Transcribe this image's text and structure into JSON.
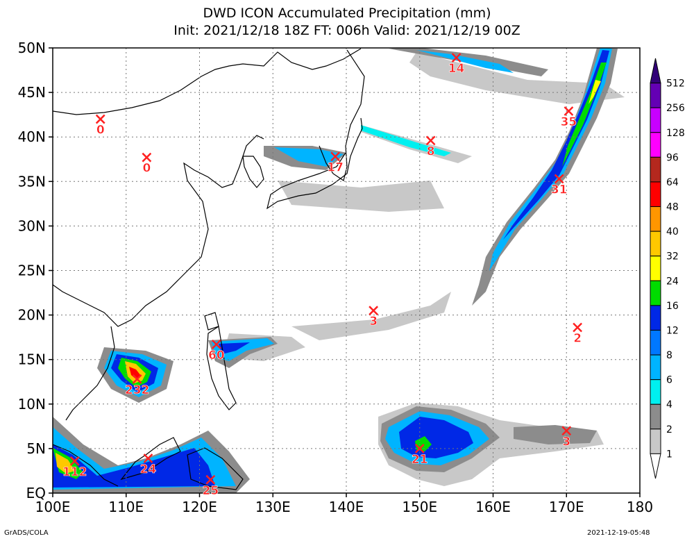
{
  "title": {
    "line1": "DWD ICON Accumulated Precipitation (mm)",
    "line2": "Init: 2021/12/18 18Z  FT: 006h  Valid: 2021/12/19 00Z"
  },
  "map": {
    "lon_range": [
      100,
      180
    ],
    "lat_range": [
      0,
      50
    ],
    "x_ticks": [
      "100E",
      "110E",
      "120E",
      "130E",
      "140E",
      "150E",
      "160E",
      "170E",
      "180"
    ],
    "y_ticks": [
      "EQ",
      "5N",
      "10N",
      "15N",
      "20N",
      "25N",
      "30N",
      "35N",
      "40N",
      "45N",
      "50N"
    ],
    "grid": true
  },
  "colorbar": {
    "levels": [
      "1",
      "2",
      "4",
      "6",
      "8",
      "12",
      "16",
      "24",
      "32",
      "40",
      "48",
      "64",
      "96",
      "128",
      "256",
      "512"
    ],
    "colors": [
      "#ffffff",
      "#c8c8c8",
      "#8c8c8c",
      "#00f0f0",
      "#00b4ff",
      "#0078ff",
      "#0028e6",
      "#00dc00",
      "#ffff00",
      "#ffc800",
      "#ff9600",
      "#ff0000",
      "#b4281e",
      "#ff00ff",
      "#c800ff",
      "#6400b4",
      "#320078"
    ]
  },
  "markers": [
    {
      "label": "0",
      "lon": 106.5,
      "lat": 42.0
    },
    {
      "label": "0",
      "lon": 112.8,
      "lat": 37.7
    },
    {
      "label": "17",
      "lon": 138.5,
      "lat": 37.8
    },
    {
      "label": "14",
      "lon": 155.0,
      "lat": 48.9
    },
    {
      "label": "8",
      "lon": 151.5,
      "lat": 39.6
    },
    {
      "label": "35",
      "lon": 170.3,
      "lat": 42.9
    },
    {
      "label": "31",
      "lon": 169.0,
      "lat": 35.3
    },
    {
      "label": "3",
      "lon": 143.7,
      "lat": 20.5
    },
    {
      "label": "2",
      "lon": 171.5,
      "lat": 18.6
    },
    {
      "label": "60",
      "lon": 122.3,
      "lat": 16.7
    },
    {
      "label": "232",
      "lon": 111.5,
      "lat": 12.8
    },
    {
      "label": "21",
      "lon": 150.0,
      "lat": 5.0
    },
    {
      "label": "3",
      "lon": 170.0,
      "lat": 7.0
    },
    {
      "label": "112",
      "lon": 103.0,
      "lat": 3.6
    },
    {
      "label": "24",
      "lon": 113.0,
      "lat": 3.9
    },
    {
      "label": "25",
      "lon": 121.5,
      "lat": 1.5
    }
  ],
  "footer": {
    "left": "GrADS/COLA",
    "right": "2021-12-19-05:48"
  }
}
